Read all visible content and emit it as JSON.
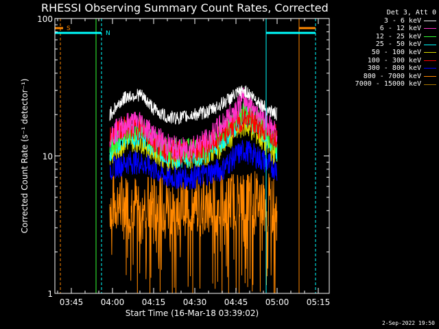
{
  "chart_data": {
    "type": "line",
    "title": "RHESSI Observing Summary Count Rates, Corrected",
    "xlabel": "Start Time (16-Mar-18 03:39:02)",
    "ylabel": "Corrected Count Rate (s⁻¹ detector⁻¹)",
    "y_scale": "log",
    "ylim": [
      1,
      100
    ],
    "xlim": [
      "03:39",
      "05:19"
    ],
    "x_ticks": [
      "03:45",
      "04:00",
      "04:15",
      "04:30",
      "04:45",
      "05:00",
      "05:15"
    ],
    "y_ticks": [
      "1",
      "10",
      "100"
    ],
    "legend_header": "Det 3, Att 0",
    "legend_position": "right-outside",
    "series": [
      {
        "name": "3 - 6 keV",
        "color": "#ffffff",
        "x": [
          "03:59",
          "04:05",
          "04:10",
          "04:15",
          "04:20",
          "04:25",
          "04:30",
          "04:35",
          "04:40",
          "04:45",
          "04:48",
          "04:52",
          "04:56",
          "05:00"
        ],
        "values": [
          20,
          27,
          28,
          22,
          19,
          19,
          20,
          21,
          24,
          28,
          30,
          26,
          22,
          20
        ]
      },
      {
        "name": "6 - 12 keV",
        "color": "#ff33cc",
        "x": [
          "03:59",
          "04:05",
          "04:10",
          "04:15",
          "04:20",
          "04:25",
          "04:30",
          "04:35",
          "04:40",
          "04:45",
          "04:48",
          "04:52",
          "04:56",
          "05:00"
        ],
        "values": [
          14,
          17,
          18,
          14,
          12,
          11,
          12,
          13,
          17,
          22,
          26,
          22,
          18,
          14
        ]
      },
      {
        "name": "12 - 25 keV",
        "color": "#33ff33",
        "x": [
          "03:59",
          "04:05",
          "04:10",
          "04:15",
          "04:20",
          "04:25",
          "04:30",
          "04:35",
          "04:40",
          "04:45",
          "04:48",
          "04:52",
          "04:56",
          "05:00"
        ],
        "values": [
          12,
          15,
          16,
          13,
          11,
          11,
          11,
          12,
          15,
          19,
          22,
          19,
          15,
          12
        ]
      },
      {
        "name": "25 - 50 keV",
        "color": "#00ffff",
        "x": [
          "03:59",
          "04:05",
          "04:10",
          "04:15",
          "04:20",
          "04:25",
          "04:30",
          "04:35",
          "04:40",
          "04:45",
          "04:48",
          "04:52",
          "04:56",
          "05:00"
        ],
        "values": [
          11,
          14,
          14,
          12,
          10,
          10,
          10,
          11,
          13,
          17,
          20,
          17,
          14,
          11
        ]
      },
      {
        "name": "50 - 100 keV",
        "color": "#dddd00",
        "x": [
          "03:59",
          "04:05",
          "04:10",
          "04:15",
          "04:20",
          "04:25",
          "04:30",
          "04:35",
          "04:40",
          "04:45",
          "04:48",
          "04:52",
          "04:56",
          "05:00"
        ],
        "values": [
          10,
          13,
          13,
          11,
          9.5,
          9.5,
          10,
          10.5,
          12,
          15,
          17,
          15,
          12,
          10
        ]
      },
      {
        "name": "100 - 300 keV",
        "color": "#ff0000",
        "x": [
          "03:59",
          "04:05",
          "04:10",
          "04:15",
          "04:20",
          "04:25",
          "04:30",
          "04:35",
          "04:40",
          "04:45",
          "04:48",
          "04:52",
          "04:56",
          "05:00"
        ],
        "values": [
          14,
          16,
          16,
          13,
          11,
          10.5,
          11,
          12,
          14,
          17,
          19,
          17,
          15,
          14
        ]
      },
      {
        "name": "300 - 800 keV",
        "color": "#0000ff",
        "x": [
          "03:59",
          "04:05",
          "04:10",
          "04:15",
          "04:20",
          "04:25",
          "04:30",
          "04:35",
          "04:40",
          "04:45",
          "04:48",
          "04:52",
          "04:56",
          "05:00"
        ],
        "values": [
          8,
          9,
          9,
          8,
          7,
          7,
          7,
          7.5,
          8,
          10,
          11,
          10,
          9,
          8
        ]
      },
      {
        "name": "800 - 7000 keV",
        "color": "#ff8800",
        "x": [
          "03:59",
          "04:05",
          "04:10",
          "04:15",
          "04:20",
          "04:25",
          "04:30",
          "04:35",
          "04:40",
          "04:45",
          "04:48",
          "04:52",
          "04:56",
          "05:00"
        ],
        "values": [
          4.5,
          4.6,
          4.5,
          4.4,
          4.4,
          4.3,
          4.4,
          4.5,
          4.6,
          4.8,
          4.9,
          4.8,
          4.6,
          4.4
        ]
      },
      {
        "name": "7000 - 15000 keV",
        "color": "#aa7700",
        "x": [],
        "values": []
      }
    ],
    "annotations": {
      "saa_label": "S",
      "night_label": "N"
    }
  },
  "footer_date": "2-Sep-2022 19:50"
}
